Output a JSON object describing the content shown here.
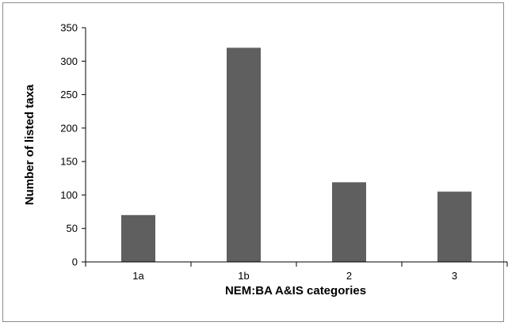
{
  "chart_data": {
    "type": "bar",
    "title": "",
    "xlabel": "NEM:BA A&IS categories",
    "ylabel": "Number of listed taxa",
    "categories": [
      "1a",
      "1b",
      "2",
      "3"
    ],
    "values": [
      70,
      320,
      119,
      105
    ],
    "ylim": [
      0,
      350
    ],
    "yticks": [
      "0",
      "50",
      "100",
      "150",
      "200",
      "250",
      "300",
      "350"
    ],
    "grid": false,
    "bar_color": "#5f5f5f"
  }
}
